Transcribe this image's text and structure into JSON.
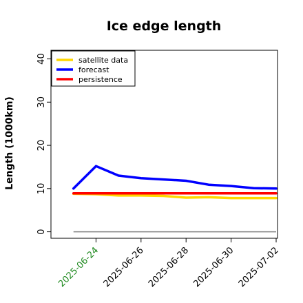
{
  "chart_data": {
    "type": "line",
    "title": "Ice edge length",
    "xlabel": "",
    "ylabel": "Length (1000km)",
    "ylim": [
      -1.5,
      42
    ],
    "yticks": [
      0,
      10,
      20,
      30,
      40
    ],
    "ytick_labels": [
      "0",
      "10",
      "20",
      "30",
      "40"
    ],
    "x_dates": [
      "2025-06-23",
      "2025-06-24",
      "2025-06-25",
      "2025-06-26",
      "2025-06-27",
      "2025-06-28",
      "2025-06-29",
      "2025-06-30",
      "2025-07-01",
      "2025-07-02"
    ],
    "xlim": [
      "2025-06-22",
      "2025-07-02"
    ],
    "xticks": [
      "2025-06-24",
      "2025-06-26",
      "2025-06-28",
      "2025-06-30",
      "2025-07-02"
    ],
    "xtick_labels": [
      "2025-06-24",
      "2025-06-26",
      "2025-06-28",
      "2025-06-30",
      "2025-07-02"
    ],
    "xtick_colors": [
      "#228B22",
      "#000000",
      "#000000",
      "#000000",
      "#000000"
    ],
    "series": [
      {
        "name": "satellite data",
        "color": "#FFD700",
        "values": [
          8.8,
          8.7,
          8.4,
          8.4,
          8.3,
          7.9,
          8.0,
          7.8,
          7.8,
          7.8
        ]
      },
      {
        "name": "forecast",
        "color": "#0000FF",
        "values": [
          10.0,
          15.2,
          13.0,
          12.4,
          12.1,
          11.8,
          10.9,
          10.6,
          10.1,
          10.0
        ]
      },
      {
        "name": "persistence",
        "color": "#FF0000",
        "values": [
          8.9,
          8.9,
          8.9,
          8.9,
          8.9,
          8.9,
          8.9,
          8.9,
          8.9,
          8.9
        ]
      }
    ],
    "reference_line": {
      "value": 0,
      "color": "#808080"
    },
    "legend_position": "top-left",
    "grid": false
  }
}
